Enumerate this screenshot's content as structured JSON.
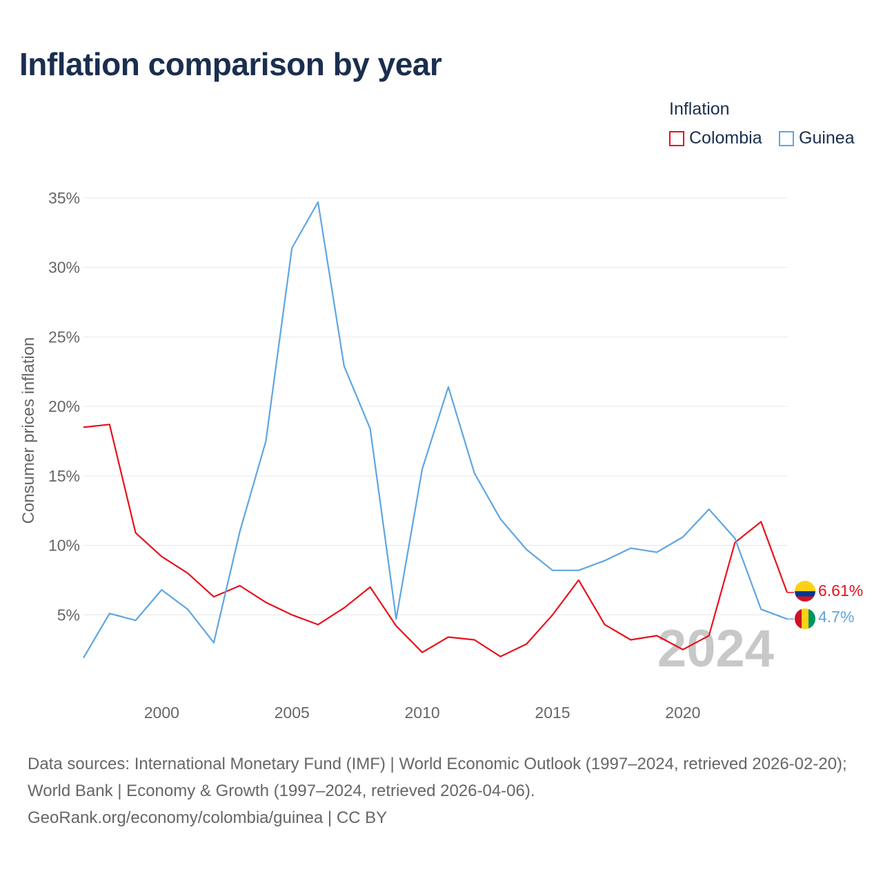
{
  "title": "Inflation comparison by year",
  "legend": {
    "title": "Inflation",
    "items": [
      {
        "name": "Colombia",
        "color": "#e8101b"
      },
      {
        "name": "Guinea",
        "color": "#5ea5e2"
      }
    ]
  },
  "chart_data": {
    "type": "line",
    "title": "Inflation comparison by year",
    "xlabel": "",
    "ylabel": "Consumer prices inflation",
    "x": [
      1997,
      1998,
      1999,
      2000,
      2001,
      2002,
      2003,
      2004,
      2005,
      2006,
      2007,
      2008,
      2009,
      2010,
      2011,
      2012,
      2013,
      2014,
      2015,
      2016,
      2017,
      2018,
      2019,
      2020,
      2021,
      2022,
      2023,
      2024
    ],
    "xlim": [
      1997,
      2024
    ],
    "ylim": [
      0,
      35
    ],
    "xticks": [
      2000,
      2005,
      2010,
      2015,
      2020
    ],
    "yticks": [
      5,
      10,
      15,
      20,
      25,
      30,
      35
    ],
    "ytick_labels": [
      "5%",
      "10%",
      "15%",
      "20%",
      "25%",
      "30%",
      "35%"
    ],
    "series": [
      {
        "name": "Colombia",
        "color": "#e8101b",
        "values": [
          18.5,
          18.7,
          10.9,
          9.2,
          8.0,
          6.3,
          7.1,
          5.9,
          5.0,
          4.3,
          5.5,
          7.0,
          4.2,
          2.3,
          3.4,
          3.2,
          2.0,
          2.9,
          5.0,
          7.5,
          4.3,
          3.2,
          3.5,
          2.5,
          3.5,
          10.2,
          11.7,
          6.61
        ],
        "end_label": "6.61%"
      },
      {
        "name": "Guinea",
        "color": "#5ea5e2",
        "values": [
          1.9,
          5.1,
          4.6,
          6.8,
          5.4,
          3.0,
          11.0,
          17.5,
          31.4,
          34.7,
          22.9,
          18.4,
          4.7,
          15.5,
          21.4,
          15.2,
          11.9,
          9.7,
          8.2,
          8.2,
          8.9,
          9.8,
          9.5,
          10.6,
          12.6,
          10.5,
          5.4,
          4.7
        ],
        "end_label": "4.7%"
      }
    ],
    "year_watermark": "2024"
  },
  "footer": {
    "line1": "Data sources: International Monetary Fund (IMF) | World Economic Outlook (1997–2024, retrieved 2026-02-20); World Bank | Economy & Growth (1997–2024, retrieved 2026-04-06).",
    "line2": "GeoRank.org/economy/colombia/guinea | CC BY"
  }
}
